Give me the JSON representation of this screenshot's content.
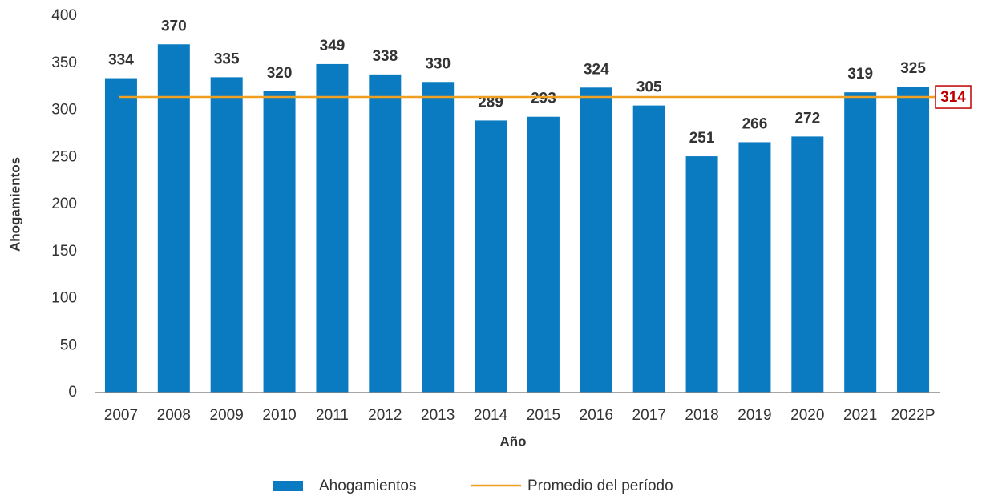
{
  "chart_data": {
    "type": "bar",
    "x_label": "Año",
    "y_label": "Ahogamientos",
    "categories": [
      "2007",
      "2008",
      "2009",
      "2010",
      "2011",
      "2012",
      "2013",
      "2014",
      "2015",
      "2016",
      "2017",
      "2018",
      "2019",
      "2020",
      "2021",
      "2022P"
    ],
    "series": [
      {
        "name": "Ahogamientos",
        "color": "#0a7bc1",
        "values": [
          334,
          370,
          335,
          320,
          349,
          338,
          330,
          289,
          293,
          324,
          305,
          251,
          266,
          272,
          319,
          325
        ]
      }
    ],
    "average_line": {
      "name": "Promedio del período",
      "value": 314,
      "color": "#f0a020",
      "label_color": "#c00000"
    },
    "ylim": [
      0,
      400
    ],
    "yticks": [
      0,
      50,
      100,
      150,
      200,
      250,
      300,
      350,
      400
    ],
    "grid": false
  }
}
